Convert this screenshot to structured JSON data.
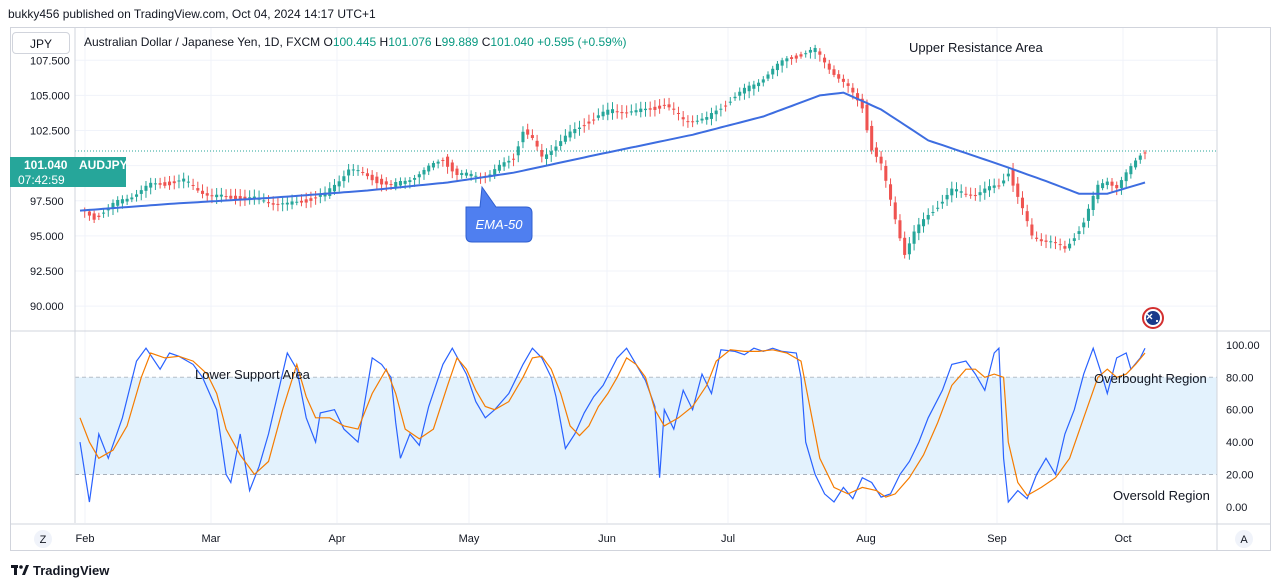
{
  "published": "bukky456 published on TradingView.com, Oct 04, 2024 14:17 UTC+1",
  "symbol_button": "JPY",
  "legend": {
    "name": "Australian Dollar / Japanese Yen, 1D, FXCM",
    "o_label": "O",
    "o": "100.445",
    "h_label": "H",
    "h": "101.076",
    "l_label": "L",
    "l": "99.889",
    "c_label": "C",
    "c": "101.040",
    "chg": "+0.595 (+0.59%)"
  },
  "price_tag": {
    "value": "101.040",
    "symbol": "AUDJPY",
    "countdown": "07:42:59"
  },
  "annotations": {
    "upper": "Upper Resistance Area",
    "lower": "Lower Support Area",
    "overbought": "Overbought Region",
    "oversold": "Oversold Region",
    "ema_callout": "EMA-50"
  },
  "bottom_logo": "TradingView",
  "scale_buttons": {
    "left": "Z",
    "right": "A"
  },
  "colors": {
    "up": "#26a69a",
    "down": "#ef5350",
    "ema": "#3d6de0",
    "k": "#2962ff",
    "d": "#f57c00",
    "band": "#e3f2fd"
  },
  "chart_data": [
    {
      "type": "candlestick",
      "title": "Australian Dollar / Japanese Yen, 1D, FXCM",
      "y_ticks": [
        90.0,
        92.5,
        95.0,
        97.5,
        100.0,
        102.5,
        105.0,
        107.5
      ],
      "y_tick_labels": [
        "90.000",
        "92.500",
        "95.000",
        "97.500",
        "100.000",
        "102.500",
        "105.000",
        "107.500"
      ],
      "ylim": [
        88.3,
        109.8
      ],
      "x_tick_labels": [
        "Feb",
        "Mar",
        "Apr",
        "May",
        "Jun",
        "Jul",
        "Aug",
        "Sep",
        "Oct"
      ],
      "close_path": [
        [
          0,
          96.8
        ],
        [
          3,
          96.3
        ],
        [
          8,
          97.4
        ],
        [
          15,
          98.6
        ],
        [
          22,
          98.9
        ],
        [
          28,
          97.8
        ],
        [
          38,
          97.6
        ],
        [
          44,
          97.2
        ],
        [
          52,
          97.9
        ],
        [
          57,
          99.8
        ],
        [
          66,
          98.5
        ],
        [
          73,
          99.6
        ],
        [
          77,
          100.5
        ],
        [
          80,
          99.3
        ],
        [
          87,
          99.4
        ],
        [
          92,
          100.6
        ],
        [
          94,
          102.5
        ],
        [
          96,
          101.8
        ],
        [
          98,
          100.6
        ],
        [
          101,
          101.5
        ],
        [
          107,
          103.0
        ],
        [
          113,
          104.0
        ],
        [
          118,
          103.8
        ],
        [
          124,
          104.3
        ],
        [
          128,
          103.3
        ],
        [
          133,
          103.3
        ],
        [
          138,
          104.7
        ],
        [
          143,
          105.8
        ],
        [
          150,
          107.6
        ],
        [
          156,
          108.2
        ],
        [
          159,
          107.0
        ],
        [
          163,
          105.5
        ],
        [
          166,
          104.2
        ],
        [
          168,
          101.2
        ],
        [
          170,
          100.0
        ],
        [
          172,
          97.5
        ],
        [
          174,
          95.0
        ],
        [
          175,
          93.8
        ],
        [
          177,
          95.2
        ],
        [
          180,
          96.5
        ],
        [
          185,
          98.2
        ],
        [
          190,
          98.0
        ],
        [
          195,
          98.6
        ],
        [
          197,
          99.6
        ],
        [
          199,
          97.7
        ],
        [
          202,
          95.0
        ],
        [
          206,
          94.6
        ],
        [
          209,
          94.0
        ],
        [
          213,
          96.0
        ],
        [
          216,
          98.5
        ],
        [
          218,
          99.0
        ],
        [
          220,
          98.5
        ],
        [
          223,
          99.8
        ],
        [
          225,
          100.8
        ],
        [
          226,
          101.04
        ]
      ],
      "ema50": [
        [
          0,
          96.8
        ],
        [
          20,
          97.3
        ],
        [
          40,
          97.7
        ],
        [
          60,
          98.2
        ],
        [
          78,
          98.8
        ],
        [
          92,
          99.5
        ],
        [
          110,
          100.8
        ],
        [
          130,
          102.2
        ],
        [
          145,
          103.5
        ],
        [
          157,
          105.0
        ],
        [
          162,
          105.2
        ],
        [
          170,
          104.0
        ],
        [
          180,
          101.8
        ],
        [
          195,
          100.1
        ],
        [
          205,
          98.9
        ],
        [
          212,
          98.0
        ],
        [
          218,
          98.0
        ],
        [
          226,
          98.8
        ]
      ],
      "last_price": 101.04
    },
    {
      "type": "line",
      "title": "",
      "y_ticks": [
        0,
        20,
        40,
        60,
        80,
        100
      ],
      "y_tick_labels": [
        "0.00",
        "20.00",
        "40.00",
        "60.00",
        "80.00",
        "100.00"
      ],
      "ylim": [
        -10,
        108
      ],
      "levels": [
        20,
        50,
        80
      ],
      "series": [
        {
          "points": [
            [
              0,
              40
            ],
            [
              2,
              3
            ],
            [
              4,
              45
            ],
            [
              6,
              30
            ],
            [
              9,
              55
            ],
            [
              12,
              90
            ],
            [
              14,
              98
            ],
            [
              17,
              85
            ],
            [
              19,
              95
            ],
            [
              21,
              93
            ],
            [
              24,
              88
            ],
            [
              26,
              80
            ],
            [
              29,
              60
            ],
            [
              31,
              20
            ],
            [
              32,
              15
            ],
            [
              34,
              45
            ],
            [
              36,
              10
            ],
            [
              38,
              25
            ],
            [
              40,
              45
            ],
            [
              44,
              95
            ],
            [
              46,
              85
            ],
            [
              48,
              55
            ],
            [
              50,
              40
            ],
            [
              51,
              58
            ],
            [
              54,
              60
            ],
            [
              56,
              48
            ],
            [
              59,
              40
            ],
            [
              62,
              92
            ],
            [
              64,
              88
            ],
            [
              66,
              80
            ],
            [
              67,
              52
            ],
            [
              68,
              30
            ],
            [
              70,
              45
            ],
            [
              72,
              38
            ],
            [
              74,
              62
            ],
            [
              77,
              88
            ],
            [
              79,
              98
            ],
            [
              82,
              82
            ],
            [
              84,
              65
            ],
            [
              86,
              55
            ],
            [
              88,
              60
            ],
            [
              91,
              70
            ],
            [
              94,
              88
            ],
            [
              96,
              98
            ],
            [
              98,
              92
            ],
            [
              100,
              80
            ],
            [
              101,
              68
            ],
            [
              102,
              52
            ],
            [
              103,
              36
            ],
            [
              105,
              45
            ],
            [
              107,
              58
            ],
            [
              109,
              68
            ],
            [
              111,
              75
            ],
            [
              114,
              92
            ],
            [
              116,
              98
            ],
            [
              118,
              88
            ],
            [
              120,
              78
            ],
            [
              122,
              62
            ],
            [
              123,
              18
            ],
            [
              124,
              60
            ],
            [
              126,
              48
            ],
            [
              128,
              72
            ],
            [
              130,
              60
            ],
            [
              132,
              82
            ],
            [
              134,
              70
            ],
            [
              136,
              97
            ],
            [
              139,
              96
            ],
            [
              141,
              94
            ],
            [
              143,
              98
            ],
            [
              145,
              96
            ],
            [
              147,
              98
            ],
            [
              149,
              96
            ],
            [
              152,
              95
            ],
            [
              153,
              80
            ],
            [
              154,
              40
            ],
            [
              156,
              20
            ],
            [
              158,
              8
            ],
            [
              160,
              3
            ],
            [
              162,
              12
            ],
            [
              164,
              5
            ],
            [
              166,
              18
            ],
            [
              168,
              15
            ],
            [
              170,
              6
            ],
            [
              172,
              8
            ],
            [
              174,
              20
            ],
            [
              176,
              28
            ],
            [
              178,
              40
            ],
            [
              180,
              55
            ],
            [
              183,
              72
            ],
            [
              185,
              88
            ],
            [
              188,
              90
            ],
            [
              190,
              82
            ],
            [
              192,
              72
            ],
            [
              194,
              95
            ],
            [
              195,
              98
            ],
            [
              196,
              30
            ],
            [
              197,
              3
            ],
            [
              199,
              10
            ],
            [
              201,
              5
            ],
            [
              203,
              20
            ],
            [
              205,
              30
            ],
            [
              207,
              20
            ],
            [
              209,
              45
            ],
            [
              211,
              60
            ],
            [
              213,
              82
            ],
            [
              215,
              98
            ],
            [
              217,
              80
            ],
            [
              218,
              70
            ],
            [
              220,
              92
            ],
            [
              222,
              95
            ],
            [
              223,
              85
            ],
            [
              225,
              92
            ],
            [
              226,
              98
            ]
          ]
        },
        {
          "points": [
            [
              0,
              55
            ],
            [
              2,
              40
            ],
            [
              4,
              30
            ],
            [
              7,
              35
            ],
            [
              10,
              50
            ],
            [
              13,
              80
            ],
            [
              15,
              95
            ],
            [
              18,
              92
            ],
            [
              21,
              93
            ],
            [
              24,
              90
            ],
            [
              27,
              82
            ],
            [
              29,
              70
            ],
            [
              31,
              48
            ],
            [
              34,
              32
            ],
            [
              37,
              20
            ],
            [
              40,
              28
            ],
            [
              43,
              60
            ],
            [
              46,
              88
            ],
            [
              48,
              68
            ],
            [
              50,
              55
            ],
            [
              53,
              55
            ],
            [
              56,
              50
            ],
            [
              59,
              48
            ],
            [
              62,
              70
            ],
            [
              65,
              85
            ],
            [
              67,
              70
            ],
            [
              69,
              48
            ],
            [
              72,
              42
            ],
            [
              75,
              48
            ],
            [
              78,
              75
            ],
            [
              80,
              92
            ],
            [
              82,
              85
            ],
            [
              84,
              72
            ],
            [
              86,
              62
            ],
            [
              88,
              60
            ],
            [
              91,
              65
            ],
            [
              94,
              80
            ],
            [
              96,
              92
            ],
            [
              98,
              93
            ],
            [
              100,
              85
            ],
            [
              102,
              70
            ],
            [
              104,
              50
            ],
            [
              106,
              44
            ],
            [
              108,
              50
            ],
            [
              110,
              62
            ],
            [
              112,
              70
            ],
            [
              114,
              80
            ],
            [
              116,
              92
            ],
            [
              118,
              88
            ],
            [
              120,
              80
            ],
            [
              122,
              60
            ],
            [
              124,
              50
            ],
            [
              127,
              55
            ],
            [
              130,
              62
            ],
            [
              133,
              75
            ],
            [
              135,
              90
            ],
            [
              138,
              97
            ],
            [
              141,
              96
            ],
            [
              144,
              96
            ],
            [
              147,
              97
            ],
            [
              150,
              95
            ],
            [
              153,
              90
            ],
            [
              155,
              60
            ],
            [
              157,
              30
            ],
            [
              160,
              12
            ],
            [
              163,
              8
            ],
            [
              166,
              12
            ],
            [
              169,
              10
            ],
            [
              171,
              6
            ],
            [
              173,
              8
            ],
            [
              176,
              18
            ],
            [
              179,
              32
            ],
            [
              182,
              52
            ],
            [
              185,
              75
            ],
            [
              188,
              85
            ],
            [
              190,
              85
            ],
            [
              192,
              80
            ],
            [
              194,
              82
            ],
            [
              196,
              80
            ],
            [
              197,
              40
            ],
            [
              199,
              15
            ],
            [
              201,
              7
            ],
            [
              204,
              12
            ],
            [
              207,
              18
            ],
            [
              210,
              30
            ],
            [
              213,
              55
            ],
            [
              216,
              80
            ],
            [
              218,
              85
            ],
            [
              220,
              80
            ],
            [
              222,
              82
            ],
            [
              224,
              88
            ],
            [
              226,
              95
            ]
          ]
        }
      ]
    }
  ]
}
